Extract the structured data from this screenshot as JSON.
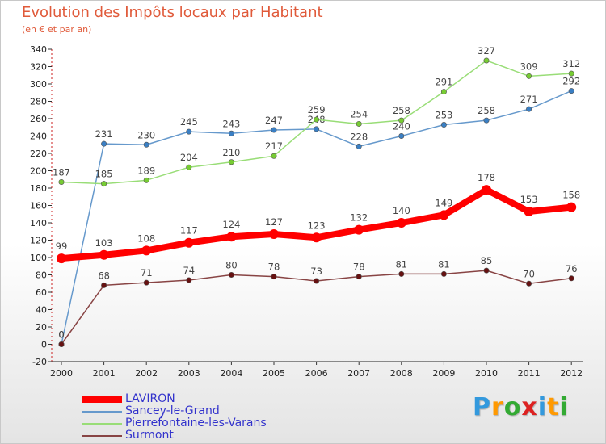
{
  "chart_data": {
    "type": "line",
    "title": "Evolution des Impôts locaux par Habitant",
    "subtitle": "(en € et par an)",
    "xlabel": "",
    "ylabel": "",
    "x": [
      "2000",
      "2001",
      "2002",
      "2003",
      "2004",
      "2005",
      "2006",
      "2007",
      "2008",
      "2009",
      "2010",
      "2011",
      "2012"
    ],
    "ylim": [
      -20,
      340
    ],
    "yticks": [
      -20,
      0,
      20,
      40,
      60,
      80,
      100,
      120,
      140,
      160,
      180,
      200,
      220,
      240,
      260,
      280,
      300,
      320,
      340
    ],
    "grid": false,
    "legend_position": "bottom-left",
    "series": [
      {
        "name": "LAVIRON",
        "color": "#ff0000",
        "point_color": "#ff0000",
        "emphasis": true,
        "values": [
          99,
          103,
          108,
          117,
          124,
          127,
          123,
          132,
          140,
          149,
          178,
          153,
          158
        ]
      },
      {
        "name": "Sancey-le-Grand",
        "color": "#6699cc",
        "point_color": "#3a7fc4",
        "emphasis": false,
        "values": [
          0,
          231,
          230,
          245,
          243,
          247,
          248,
          228,
          240,
          253,
          258,
          271,
          292
        ]
      },
      {
        "name": "Pierrefontaine-les-Varans",
        "color": "#99dd77",
        "point_color": "#77cc33",
        "emphasis": false,
        "values": [
          187,
          185,
          189,
          204,
          210,
          217,
          259,
          254,
          258,
          291,
          327,
          309,
          312
        ]
      },
      {
        "name": "Surmont",
        "color": "#884444",
        "point_color": "#661111",
        "emphasis": false,
        "values": [
          0,
          68,
          71,
          74,
          80,
          78,
          73,
          78,
          81,
          81,
          85,
          70,
          76
        ]
      }
    ]
  },
  "logo": {
    "letters": [
      "P",
      "r",
      "o",
      "x",
      "i",
      "t",
      "i"
    ],
    "colors": [
      "#3399dd",
      "#ff9900",
      "#33aa33",
      "#dd2222",
      "#3399dd",
      "#ff9900",
      "#33aa33"
    ]
  }
}
